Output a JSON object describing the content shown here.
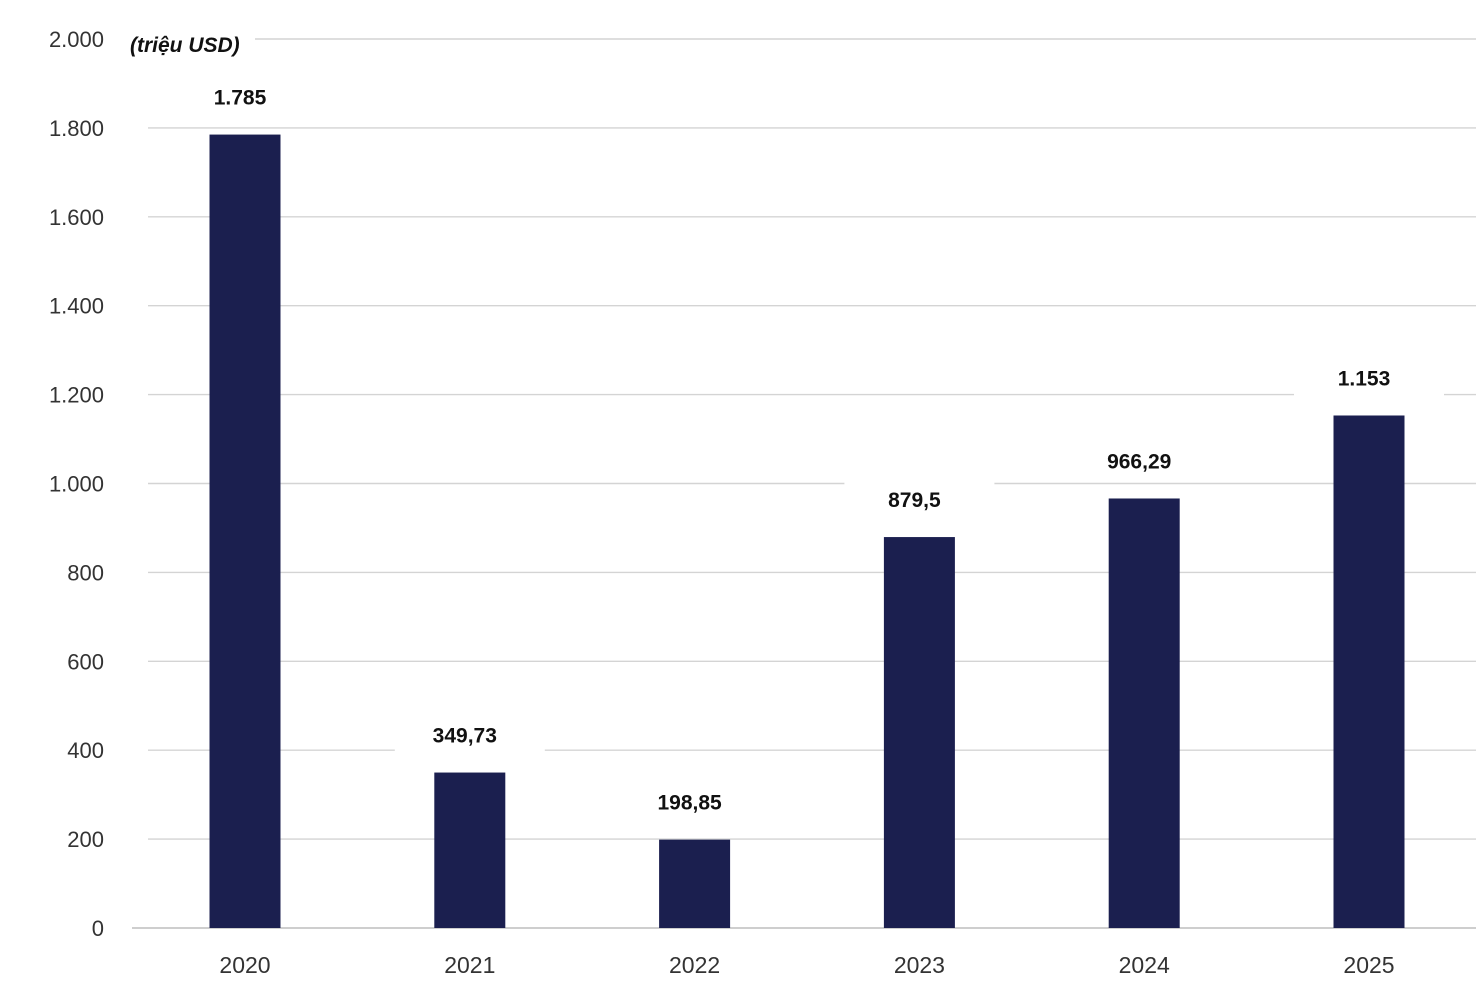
{
  "chart_data": {
    "type": "bar",
    "unit_label": "(triệu USD)",
    "categories": [
      "2020",
      "2021",
      "2022",
      "2023",
      "2024",
      "2025"
    ],
    "values": [
      1785,
      349.73,
      198.85,
      879.5,
      966.29,
      1153
    ],
    "value_labels": [
      "1.785",
      "349,73",
      "198,85",
      "879,5",
      "966,29",
      "1.153"
    ],
    "y_ticks": [
      {
        "value": 0,
        "label": "0"
      },
      {
        "value": 200,
        "label": "200"
      },
      {
        "value": 400,
        "label": "400"
      },
      {
        "value": 600,
        "label": "600"
      },
      {
        "value": 800,
        "label": "800"
      },
      {
        "value": 1000,
        "label": "1.000"
      },
      {
        "value": 1200,
        "label": "1.200"
      },
      {
        "value": 1400,
        "label": "1.400"
      },
      {
        "value": 1600,
        "label": "1.600"
      },
      {
        "value": 1800,
        "label": "1.800"
      },
      {
        "value": 2000,
        "label": "2.000"
      }
    ],
    "ylim": [
      0,
      2000
    ],
    "grid": true,
    "bar_color": "#1b1f4f"
  }
}
